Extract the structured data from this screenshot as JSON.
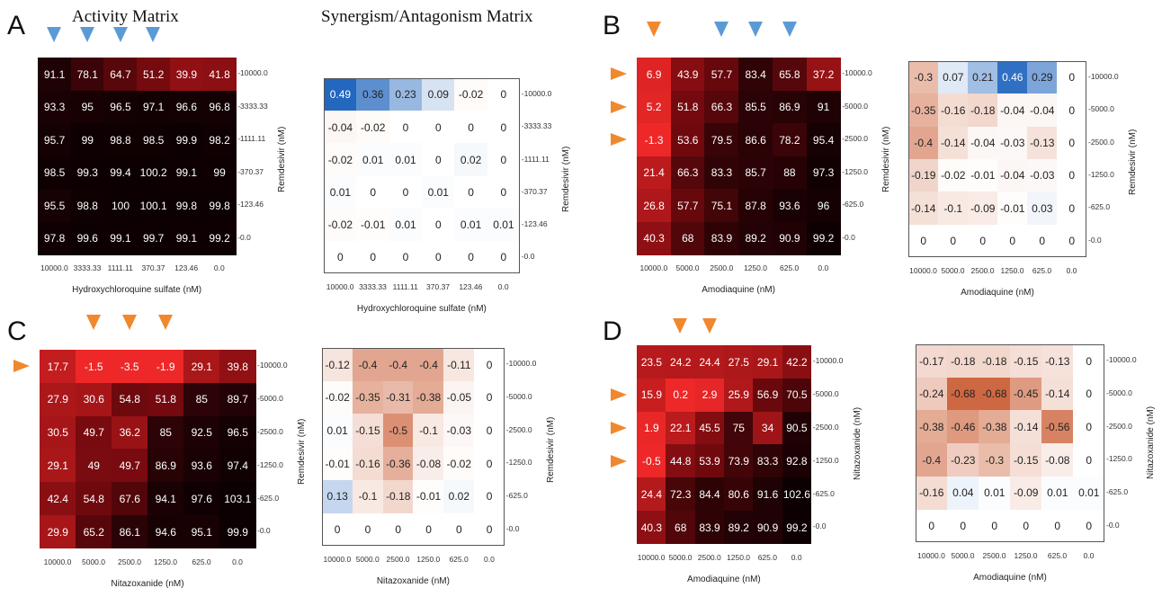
{
  "titles": {
    "activity": "Activity Matrix",
    "synergy": "Synergism/Antagonism Matrix"
  },
  "panel_labels": [
    "A",
    "B",
    "C",
    "D"
  ],
  "colors": {
    "blue_arrow": "#5b9bd5",
    "orange_arrow": "#f0882e"
  },
  "chart_data": [
    {
      "id": "A-activity",
      "type": "heatmap",
      "panel": "A",
      "kind": "activity",
      "xlabel": "Hydroxychloroquine sulfate (nM)",
      "ylabel": "Remdesivir (nM)",
      "x": [
        "10000.0",
        "3333.33",
        "1111.11",
        "370.37",
        "123.46",
        "0.0"
      ],
      "y": [
        "10000.0",
        "3333.33",
        "1111.11",
        "370.37",
        "123.46",
        "0.0"
      ],
      "values": [
        [
          91.1,
          78.1,
          64.7,
          51.2,
          39.9,
          41.8
        ],
        [
          93.3,
          95,
          96.5,
          97.1,
          96.6,
          96.8
        ],
        [
          95.7,
          99,
          98.8,
          98.5,
          99.9,
          98.2
        ],
        [
          98.5,
          99.3,
          99.4,
          100.2,
          99.1,
          99
        ],
        [
          95.5,
          98.8,
          100,
          100.1,
          99.8,
          99.8
        ],
        [
          97.8,
          99.6,
          99.1,
          99.7,
          99.1,
          99.2
        ]
      ],
      "arrows_top": [
        0,
        1,
        2,
        3
      ],
      "arrows_left": [],
      "arrow_color": "blue"
    },
    {
      "id": "A-synergy",
      "type": "heatmap",
      "panel": "A",
      "kind": "synergy",
      "xlabel": "Hydroxychloroquine sulfate (nM)",
      "ylabel": "Remdesivir (nM)",
      "x": [
        "10000.0",
        "3333.33",
        "1111.11",
        "370.37",
        "123.46",
        "0.0"
      ],
      "y": [
        "10000.0",
        "3333.33",
        "1111.11",
        "370.37",
        "123.46",
        "0.0"
      ],
      "values": [
        [
          0.49,
          0.36,
          0.23,
          0.09,
          -0.02,
          0
        ],
        [
          -0.04,
          -0.02,
          0,
          0,
          0,
          0
        ],
        [
          -0.02,
          0.01,
          0.01,
          0,
          0.02,
          0
        ],
        [
          0.01,
          0,
          0,
          0.01,
          0,
          0
        ],
        [
          -0.02,
          -0.01,
          0.01,
          0,
          0.01,
          0.01
        ],
        [
          0,
          0,
          0,
          0,
          0,
          0
        ]
      ]
    },
    {
      "id": "B-activity",
      "type": "heatmap",
      "panel": "B",
      "kind": "activity",
      "xlabel": "Amodiaquine (nM)",
      "ylabel": "Remdesivir (nM)",
      "x": [
        "10000.0",
        "5000.0",
        "2500.0",
        "1250.0",
        "625.0",
        "0.0"
      ],
      "y": [
        "10000.0",
        "5000.0",
        "2500.0",
        "1250.0",
        "625.0",
        "0.0"
      ],
      "values": [
        [
          6.9,
          43.9,
          57.7,
          83.4,
          65.8,
          37.2
        ],
        [
          5.2,
          51.8,
          66.3,
          85.5,
          86.9,
          91
        ],
        [
          -1.3,
          53.6,
          79.5,
          86.6,
          78.2,
          95.4
        ],
        [
          21.4,
          66.3,
          83.3,
          85.7,
          88,
          97.3
        ],
        [
          26.8,
          57.7,
          75.1,
          87.8,
          93.6,
          96
        ],
        [
          40.3,
          68,
          83.9,
          89.2,
          90.9,
          99.2
        ]
      ],
      "arrows_top": [
        0,
        2,
        3,
        4
      ],
      "arrows_left": [
        0,
        1,
        2
      ],
      "arrows_top_colors": [
        "orange",
        "blue",
        "blue",
        "blue"
      ],
      "arrows_left_color": "orange"
    },
    {
      "id": "B-synergy",
      "type": "heatmap",
      "panel": "B",
      "kind": "synergy",
      "xlabel": "Amodiaquine (nM)",
      "ylabel": "Remdesivir (nM)",
      "x": [
        "10000.0",
        "5000.0",
        "2500.0",
        "1250.0",
        "625.0",
        "0.0"
      ],
      "y": [
        "10000.0",
        "5000.0",
        "2500.0",
        "1250.0",
        "625.0",
        "0.0"
      ],
      "values": [
        [
          -0.3,
          0.07,
          0.21,
          0.46,
          0.29,
          0
        ],
        [
          -0.35,
          -0.16,
          -0.18,
          -0.04,
          -0.04,
          0
        ],
        [
          -0.4,
          -0.14,
          -0.04,
          -0.03,
          -0.13,
          0
        ],
        [
          -0.19,
          -0.02,
          -0.01,
          -0.04,
          -0.03,
          0
        ],
        [
          -0.14,
          -0.1,
          -0.09,
          -0.01,
          0.03,
          0
        ],
        [
          0,
          0,
          0,
          0,
          0,
          0
        ]
      ]
    },
    {
      "id": "C-activity",
      "type": "heatmap",
      "panel": "C",
      "kind": "activity",
      "xlabel": "Nitazoxanide (nM)",
      "ylabel": "Remdesivir (nM)",
      "x": [
        "10000.0",
        "5000.0",
        "2500.0",
        "1250.0",
        "625.0",
        "0.0"
      ],
      "y": [
        "10000.0",
        "5000.0",
        "2500.0",
        "1250.0",
        "625.0",
        "0.0"
      ],
      "values": [
        [
          17.7,
          -1.5,
          -3.5,
          -1.9,
          29.1,
          39.8
        ],
        [
          27.9,
          30.6,
          54.8,
          51.8,
          85,
          89.7
        ],
        [
          30.5,
          49.7,
          36.2,
          85,
          92.5,
          96.5
        ],
        [
          29.1,
          49,
          49.7,
          86.9,
          93.6,
          97.4
        ],
        [
          42.4,
          54.8,
          67.6,
          94.1,
          97.6,
          103.1
        ],
        [
          29.9,
          65.2,
          86.1,
          94.6,
          95.1,
          99.9
        ]
      ],
      "arrows_top": [
        1,
        2,
        3
      ],
      "arrows_left": [
        0
      ],
      "arrow_color": "orange"
    },
    {
      "id": "C-synergy",
      "type": "heatmap",
      "panel": "C",
      "kind": "synergy",
      "xlabel": "Nitazoxanide (nM)",
      "ylabel": "Remdesivir (nM)",
      "x": [
        "10000.0",
        "5000.0",
        "2500.0",
        "1250.0",
        "625.0",
        "0.0"
      ],
      "y": [
        "10000.0",
        "5000.0",
        "2500.0",
        "1250.0",
        "625.0",
        "0.0"
      ],
      "values": [
        [
          -0.12,
          -0.4,
          -0.4,
          -0.4,
          -0.11,
          0
        ],
        [
          -0.02,
          -0.35,
          -0.31,
          -0.38,
          -0.05,
          0
        ],
        [
          0.01,
          -0.15,
          -0.5,
          -0.1,
          -0.03,
          0
        ],
        [
          -0.01,
          -0.16,
          -0.36,
          -0.08,
          -0.02,
          0
        ],
        [
          0.13,
          -0.1,
          -0.18,
          -0.01,
          0.02,
          0
        ],
        [
          0,
          0,
          0,
          0,
          0,
          0
        ]
      ]
    },
    {
      "id": "D-activity",
      "type": "heatmap",
      "panel": "D",
      "kind": "activity",
      "xlabel": "Amodiaquine (nM)",
      "ylabel": "Nitazoxanide (nM)",
      "x": [
        "10000.0",
        "5000.0",
        "2500.0",
        "1250.0",
        "625.0",
        "0.0"
      ],
      "y": [
        "10000.0",
        "5000.0",
        "2500.0",
        "1250.0",
        "625.0",
        "0.0"
      ],
      "values": [
        [
          23.5,
          24.2,
          24.4,
          27.5,
          29.1,
          42.2
        ],
        [
          15.9,
          0.2,
          2.9,
          25.9,
          56.9,
          70.5
        ],
        [
          1.9,
          22.1,
          45.5,
          75,
          34,
          90.5
        ],
        [
          -0.5,
          44.8,
          53.9,
          73.9,
          83.3,
          92.8
        ],
        [
          24.4,
          72.3,
          84.4,
          80.6,
          91.6,
          102.6
        ],
        [
          40.3,
          68,
          83.9,
          89.2,
          90.9,
          99.2
        ]
      ],
      "arrows_top": [
        1,
        2
      ],
      "arrows_left": [
        1,
        2,
        3
      ],
      "arrow_color": "orange"
    },
    {
      "id": "D-synergy",
      "type": "heatmap",
      "panel": "D",
      "kind": "synergy",
      "xlabel": "Amodiaquine (nM)",
      "ylabel": "Nitazoxanide (nM)",
      "x": [
        "10000.0",
        "5000.0",
        "2500.0",
        "1250.0",
        "625.0",
        "0.0"
      ],
      "y": [
        "10000.0",
        "5000.0",
        "2500.0",
        "1250.0",
        "625.0",
        "0.0"
      ],
      "values": [
        [
          -0.17,
          -0.18,
          -0.18,
          -0.15,
          -0.13,
          0
        ],
        [
          -0.24,
          -0.68,
          -0.68,
          -0.45,
          -0.14,
          0
        ],
        [
          -0.38,
          -0.46,
          -0.38,
          -0.14,
          -0.56,
          0
        ],
        [
          -0.4,
          -0.23,
          -0.3,
          -0.15,
          -0.08,
          0
        ],
        [
          -0.16,
          0.04,
          0.01,
          -0.09,
          0.01,
          0.01
        ],
        [
          0,
          0,
          0,
          0,
          0,
          0
        ]
      ]
    }
  ]
}
